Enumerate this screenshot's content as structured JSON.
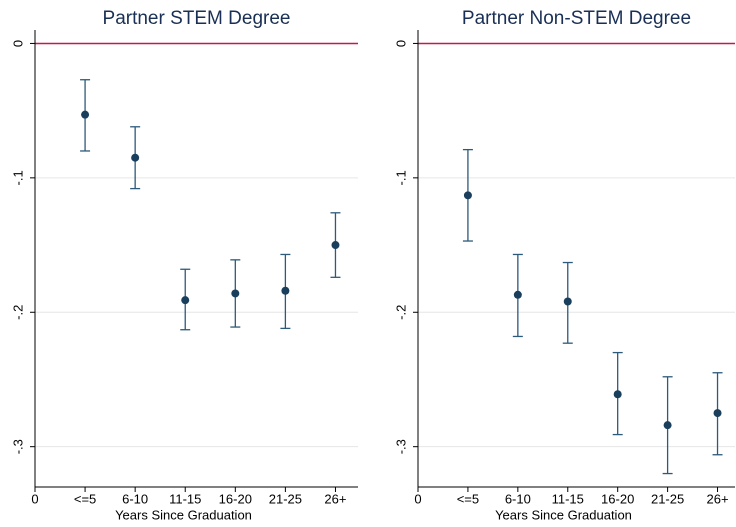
{
  "chart_data": [
    {
      "type": "errorbar",
      "title": "Partner STEM Degree",
      "x_label": "Years Since Graduation",
      "xlim": [
        0,
        6.45
      ],
      "xticks": [
        0,
        {
          "value": 1,
          "label": "<=5"
        },
        {
          "value": 2,
          "label": "6-10"
        },
        {
          "value": 3,
          "label": "11-15"
        },
        {
          "value": 4,
          "label": "16-20"
        },
        {
          "value": 5,
          "label": "21-25"
        },
        {
          "value": 6,
          "label": "26+"
        }
      ],
      "ylim": [
        -0.33,
        0.01
      ],
      "yticks": [
        0,
        {
          "value": -0.1,
          "label": "-.1"
        },
        {
          "value": -0.2,
          "label": "-.2"
        },
        {
          "value": -0.3,
          "label": "-.3"
        }
      ],
      "grid": true,
      "hline": 0,
      "hline_color": "#c8174f",
      "series": [
        {
          "color": "#1a3f5c",
          "bar_color": "#2d5a7a",
          "x": [
            1,
            2,
            3,
            4,
            5,
            6
          ],
          "values": [
            -0.053,
            -0.085,
            -0.191,
            -0.186,
            -0.184,
            -0.15
          ],
          "lower": [
            -0.08,
            -0.108,
            -0.213,
            -0.211,
            -0.212,
            -0.174
          ],
          "upper": [
            -0.027,
            -0.062,
            -0.168,
            -0.161,
            -0.157,
            -0.126
          ]
        }
      ]
    },
    {
      "type": "errorbar",
      "title": "Partner Non-STEM Degree",
      "x_label": "Years Since Graduation",
      "xlim": [
        0,
        6.35
      ],
      "xticks": [
        0,
        {
          "value": 1,
          "label": "<=5"
        },
        {
          "value": 2,
          "label": "6-10"
        },
        {
          "value": 3,
          "label": "11-15"
        },
        {
          "value": 4,
          "label": "16-20"
        },
        {
          "value": 5,
          "label": "21-25"
        },
        {
          "value": 6,
          "label": "26+"
        }
      ],
      "ylim": [
        -0.33,
        0.01
      ],
      "yticks": [
        0,
        {
          "value": -0.1,
          "label": "-.1"
        },
        {
          "value": -0.2,
          "label": "-.2"
        },
        {
          "value": -0.3,
          "label": "-.3"
        }
      ],
      "grid": true,
      "hline": 0,
      "hline_color": "#c8174f",
      "series": [
        {
          "color": "#1a3f5c",
          "bar_color": "#2d5a7a",
          "x": [
            1,
            2,
            3,
            4,
            5,
            6
          ],
          "values": [
            -0.113,
            -0.187,
            -0.192,
            -0.261,
            -0.284,
            -0.275
          ],
          "lower": [
            -0.147,
            -0.218,
            -0.223,
            -0.291,
            -0.32,
            -0.306
          ],
          "upper": [
            -0.079,
            -0.157,
            -0.163,
            -0.23,
            -0.248,
            -0.245
          ]
        }
      ]
    }
  ]
}
